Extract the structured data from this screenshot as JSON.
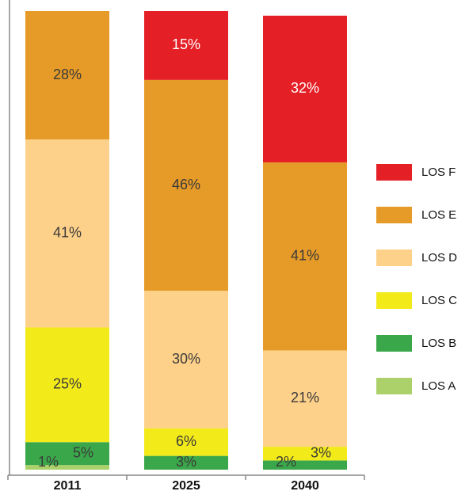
{
  "chart_data": {
    "type": "stacked_bar",
    "categories": [
      "2011",
      "2025",
      "2040"
    ],
    "ylim": [
      0,
      100
    ],
    "series": [
      {
        "name": "LOS A",
        "color": "#acd16a",
        "values": [
          1,
          null,
          null
        ],
        "value_labels": [
          "1%",
          null,
          null
        ]
      },
      {
        "name": "LOS B",
        "color": "#3aa84a",
        "values": [
          5,
          3,
          2
        ],
        "value_labels": [
          "5%",
          "3%",
          "2%"
        ]
      },
      {
        "name": "LOS C",
        "color": "#f3ea1a",
        "values": [
          25,
          6,
          3
        ],
        "value_labels": [
          "25%",
          "6%",
          "3%"
        ]
      },
      {
        "name": "LOS D",
        "color": "#fed18a",
        "values": [
          41,
          30,
          21
        ],
        "value_labels": [
          "41%",
          "30%",
          "21%"
        ]
      },
      {
        "name": "LOS E",
        "color": "#e69a27",
        "values": [
          28,
          46,
          41
        ],
        "value_labels": [
          "28%",
          "46%",
          "41%"
        ]
      },
      {
        "name": "LOS F",
        "color": "#e41f26",
        "values": [
          null,
          15,
          32
        ],
        "value_labels": [
          null,
          "15%",
          "32%"
        ]
      }
    ],
    "legend": "right"
  }
}
